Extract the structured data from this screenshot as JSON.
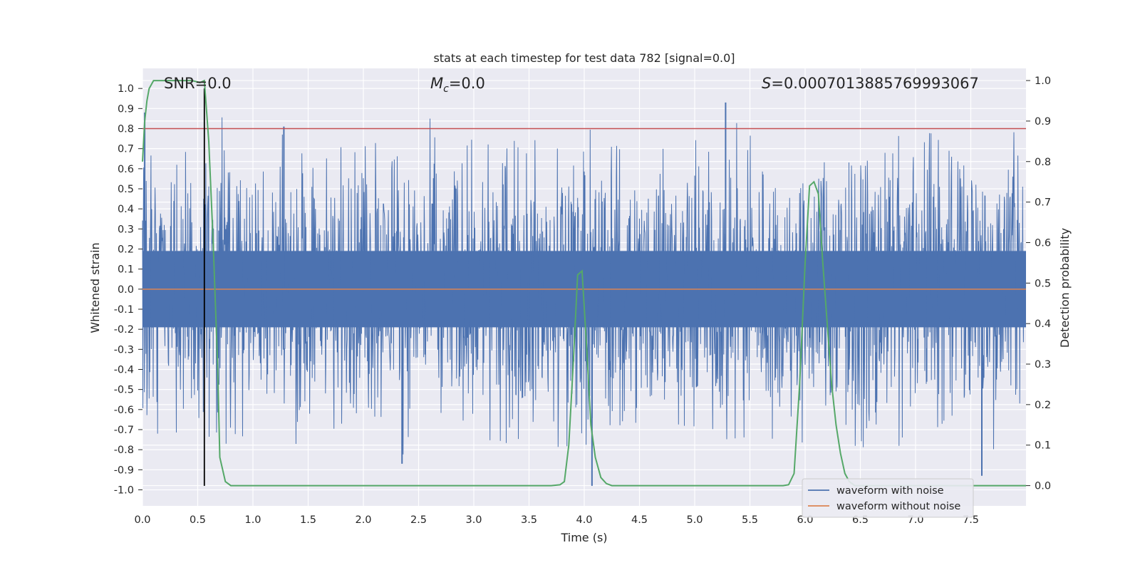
{
  "chart_data": {
    "type": "line",
    "title": "stats at each timestep for test data 782 [signal=0.0]",
    "xlabel": "Time (s)",
    "ylabel_left": "Whitened strain",
    "ylabel_right": "Detection probability",
    "xlim": [
      0.0,
      8.0
    ],
    "ylim_left": [
      -1.08,
      1.1
    ],
    "ylim_right": [
      -0.05,
      1.03
    ],
    "x_ticks": [
      "0.0",
      "0.5",
      "1.0",
      "1.5",
      "2.0",
      "2.5",
      "3.0",
      "3.5",
      "4.0",
      "4.5",
      "5.0",
      "5.5",
      "6.0",
      "6.5",
      "7.0",
      "7.5"
    ],
    "y_ticks_left": [
      "1.0",
      "0.9",
      "0.8",
      "0.7",
      "0.6",
      "0.5",
      "0.4",
      "0.3",
      "0.2",
      "0.1",
      "0.0",
      "-0.1",
      "-0.2",
      "-0.3",
      "-0.4",
      "-0.5",
      "-0.6",
      "-0.7",
      "-0.8",
      "-0.9",
      "-1.0"
    ],
    "y_ticks_right": [
      "1.0",
      "0.9",
      "0.8",
      "0.7",
      "0.6",
      "0.5",
      "0.4",
      "0.3",
      "0.2",
      "0.1",
      "0.0"
    ],
    "grid": true,
    "legend_position": "lower-right",
    "annotations": {
      "snr": "SNR=0.0",
      "mc_symbol": "M",
      "mc_sub": "c",
      "mc_value": "=0.0",
      "s_symbol": "S",
      "s_value": "=0.0007013885769993067"
    },
    "series": [
      {
        "name": "waveform with noise",
        "color": "#4c72b0",
        "noise_envelope": {
          "typical_abs": 0.4,
          "peak_max": 0.93,
          "peak_min": -0.98
        }
      },
      {
        "name": "waveform without noise",
        "color": "#dd8452",
        "constant": 0.0
      },
      {
        "color": "#55a868",
        "x": [
          0.0,
          0.02,
          0.04,
          0.06,
          0.1,
          0.15,
          0.3,
          0.45,
          0.52,
          0.56,
          0.6,
          0.64,
          0.68,
          0.7,
          0.75,
          0.8,
          1.0,
          2.0,
          3.0,
          3.6,
          3.7,
          3.78,
          3.82,
          3.86,
          3.9,
          3.94,
          3.98,
          4.02,
          4.06,
          4.1,
          4.15,
          4.2,
          4.25,
          4.3,
          4.5,
          5.0,
          5.5,
          5.8,
          5.85,
          5.9,
          5.95,
          6.0,
          6.04,
          6.08,
          6.12,
          6.16,
          6.2,
          6.24,
          6.28,
          6.32,
          6.36,
          6.4,
          6.45,
          6.5,
          7.0,
          7.5,
          8.0
        ],
        "y": [
          0.8,
          0.9,
          0.95,
          0.98,
          1.0,
          1.0,
          1.0,
          1.0,
          0.995,
          1.0,
          0.85,
          0.6,
          0.3,
          0.07,
          0.01,
          0.0,
          0.0,
          0.0,
          0.0,
          0.0,
          0.0,
          0.002,
          0.01,
          0.1,
          0.3,
          0.52,
          0.53,
          0.35,
          0.15,
          0.07,
          0.02,
          0.005,
          0.0,
          0.0,
          0.0,
          0.0,
          0.0,
          0.0,
          0.002,
          0.03,
          0.25,
          0.55,
          0.74,
          0.75,
          0.72,
          0.55,
          0.4,
          0.25,
          0.15,
          0.08,
          0.03,
          0.01,
          0.0,
          0.0,
          0.0,
          0.0,
          0.0
        ]
      },
      {
        "color": "#c44e52",
        "constant": 0.8
      },
      {
        "color": "#000000",
        "vertical_x": 0.56,
        "y_range": [
          -0.98,
          1.0
        ]
      }
    ]
  }
}
